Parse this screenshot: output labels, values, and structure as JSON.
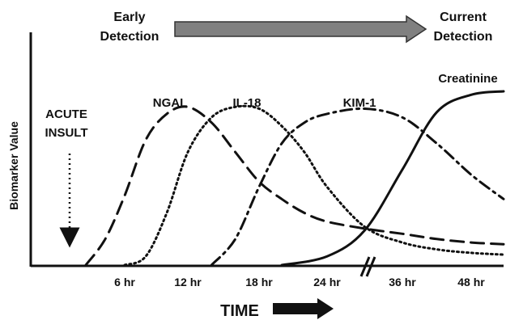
{
  "chart_data": {
    "type": "line",
    "title": "",
    "xlabel": "TIME",
    "ylabel": "Biomarker Value",
    "x_ticks": [
      {
        "x": 6,
        "label": "6 hr"
      },
      {
        "x": 12,
        "label": "12 hr"
      },
      {
        "x": 18,
        "label": "18 hr"
      },
      {
        "x": 24,
        "label": "24 hr"
      },
      {
        "x": 36,
        "label": "36 hr"
      },
      {
        "x": 48,
        "label": "48 hr"
      }
    ],
    "axis_break": {
      "between": [
        24,
        36
      ]
    },
    "ylim": [
      0,
      1
    ],
    "grid": false,
    "annotations": {
      "early_detection_line1": "Early",
      "early_detection_line2": "Detection",
      "current_detection_line1": "Current",
      "current_detection_line2": "Detection",
      "acute_insult_line1": "ACUTE",
      "acute_insult_line2": "INSULT"
    },
    "series": [
      {
        "name": "NGAL",
        "style": "dashed",
        "x": [
          2,
          4,
          6,
          8,
          10,
          12,
          14,
          16,
          18,
          20,
          22,
          24,
          30,
          36,
          42,
          48,
          54
        ],
        "y": [
          0.0,
          0.15,
          0.4,
          0.72,
          0.87,
          0.91,
          0.82,
          0.65,
          0.48,
          0.38,
          0.3,
          0.25,
          0.21,
          0.18,
          0.15,
          0.13,
          0.12
        ]
      },
      {
        "name": "IL-18",
        "style": "dotted",
        "x": [
          6,
          8,
          10,
          12,
          14,
          16,
          18,
          20,
          22,
          24,
          30,
          36,
          42,
          48,
          54
        ],
        "y": [
          0.0,
          0.05,
          0.3,
          0.65,
          0.85,
          0.91,
          0.9,
          0.8,
          0.65,
          0.45,
          0.22,
          0.13,
          0.09,
          0.07,
          0.06
        ]
      },
      {
        "name": "KIM-1",
        "style": "dash-dot",
        "x": [
          14,
          16,
          18,
          20,
          22,
          24,
          30,
          36,
          42,
          48,
          54
        ],
        "y": [
          0.0,
          0.15,
          0.45,
          0.7,
          0.82,
          0.87,
          0.9,
          0.85,
          0.7,
          0.52,
          0.38
        ]
      },
      {
        "name": "Creatinine",
        "style": "solid",
        "x": [
          20,
          24,
          30,
          36,
          42,
          48,
          54
        ],
        "y": [
          0.0,
          0.05,
          0.2,
          0.55,
          0.88,
          0.98,
          1.0
        ]
      }
    ]
  }
}
